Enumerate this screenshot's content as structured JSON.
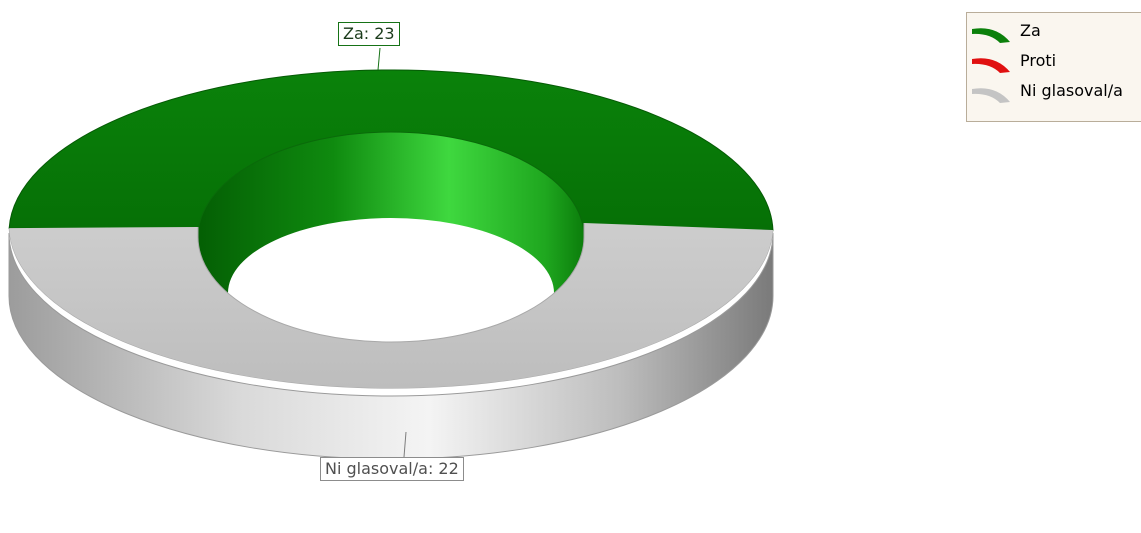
{
  "chart_data": {
    "type": "pie",
    "style": "3d-donut",
    "title": "",
    "categories": [
      "Za",
      "Proti",
      "Ni glasoval/a"
    ],
    "values": [
      23,
      0,
      22
    ],
    "colors": [
      "#0b800b",
      "#e01010",
      "#c4c4c4"
    ],
    "legend_position": "top-right",
    "data_labels": [
      {
        "series": "Za",
        "text": "Za: 23"
      },
      {
        "series": "Ni glasoval/a",
        "text": "Ni glasoval/a: 22"
      }
    ],
    "legend": {
      "items": [
        {
          "label": "Za",
          "color": "#0b800b"
        },
        {
          "label": "Proti",
          "color": "#e01010"
        },
        {
          "label": "Ni glasoval/a",
          "color": "#c4c4c4"
        }
      ]
    }
  }
}
